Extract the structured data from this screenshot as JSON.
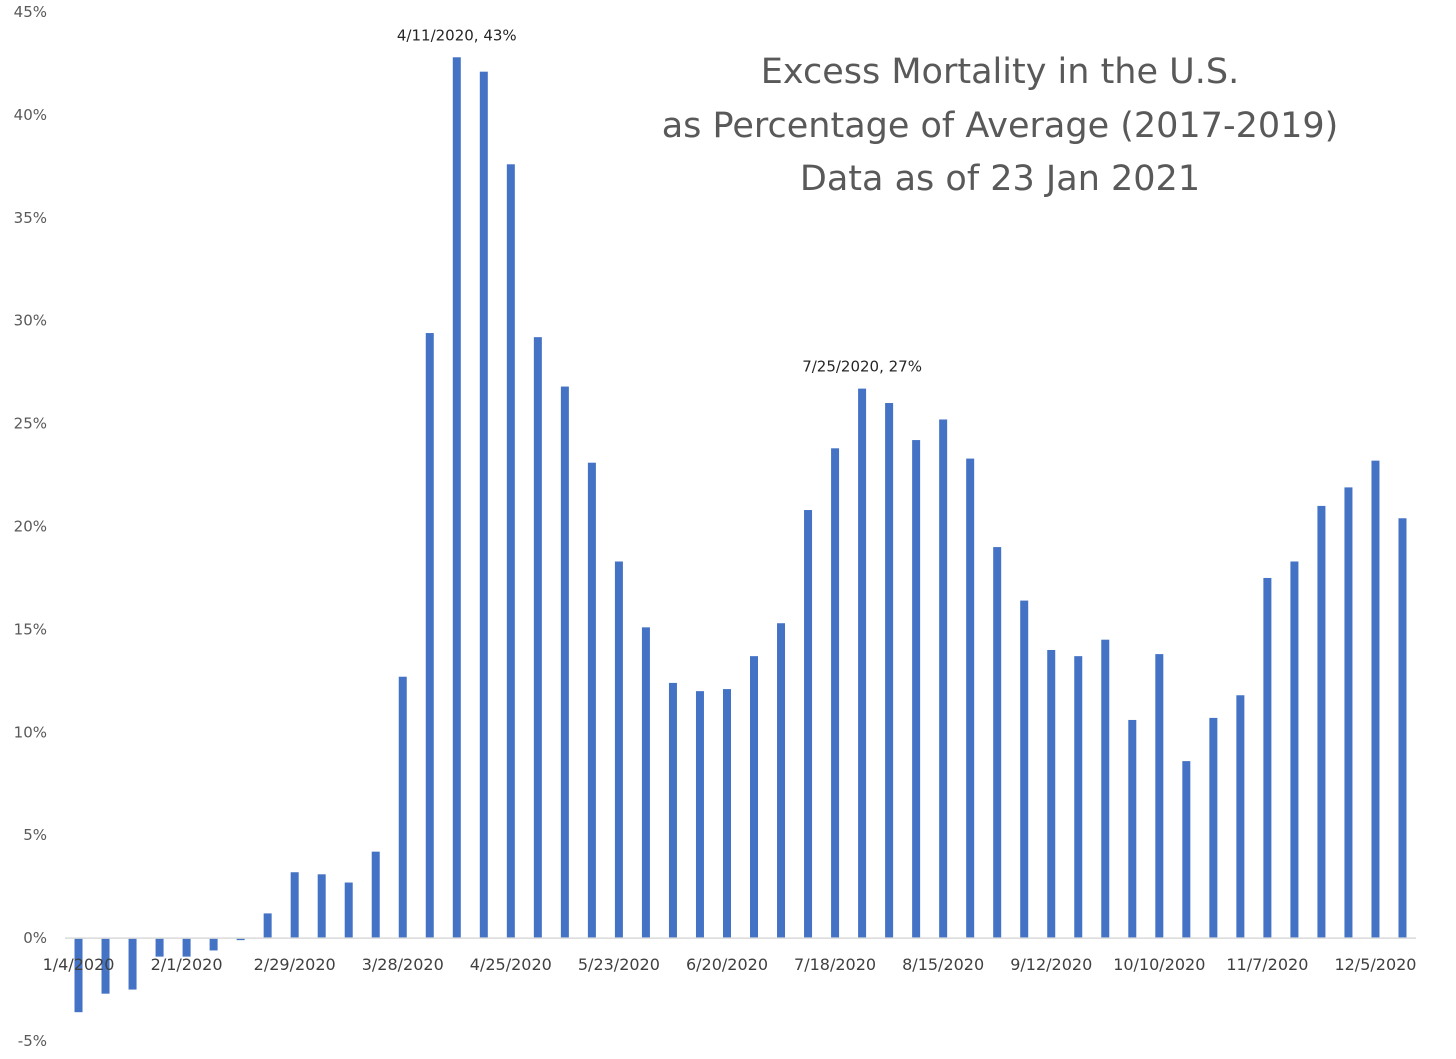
{
  "chart_data": {
    "type": "bar",
    "title": [
      "Excess Mortality in the U.S.",
      "as Percentage of Average (2017-2019)",
      "Data as of 23 Jan 2021"
    ],
    "ylim": [
      -0.05,
      0.45
    ],
    "y_ticks": [
      -0.05,
      0,
      0.05,
      0.1,
      0.15,
      0.2,
      0.25,
      0.3,
      0.35,
      0.4,
      0.45
    ],
    "y_tick_labels": [
      "-5%",
      "0%",
      "5%",
      "10%",
      "15%",
      "20%",
      "25%",
      "30%",
      "35%",
      "40%",
      "45%"
    ],
    "x_tick_labels": [
      "1/4/2020",
      "2/1/2020",
      "2/29/2020",
      "3/28/2020",
      "4/25/2020",
      "5/23/2020",
      "6/20/2020",
      "7/18/2020",
      "8/15/2020",
      "9/12/2020",
      "10/10/2020",
      "11/7/2020",
      "12/5/2020"
    ],
    "x_tick_every": 4,
    "grid": false,
    "values": [
      -0.036,
      -0.027,
      -0.025,
      -0.009,
      -0.009,
      -0.006,
      -0.001,
      0.012,
      0.032,
      0.031,
      0.027,
      0.042,
      0.127,
      0.294,
      0.428,
      0.421,
      0.376,
      0.292,
      0.268,
      0.231,
      0.183,
      0.151,
      0.124,
      0.12,
      0.121,
      0.137,
      0.153,
      0.208,
      0.238,
      0.267,
      0.26,
      0.242,
      0.252,
      0.233,
      0.19,
      0.164,
      0.14,
      0.137,
      0.145,
      0.106,
      0.138,
      0.086,
      0.107,
      0.118,
      0.175,
      0.183,
      0.21,
      0.219,
      0.232,
      0.204
    ],
    "annotations": [
      {
        "index": 14,
        "text": "4/11/2020, 43%"
      },
      {
        "index": 29,
        "text": "7/25/2020, 27%"
      }
    ]
  }
}
